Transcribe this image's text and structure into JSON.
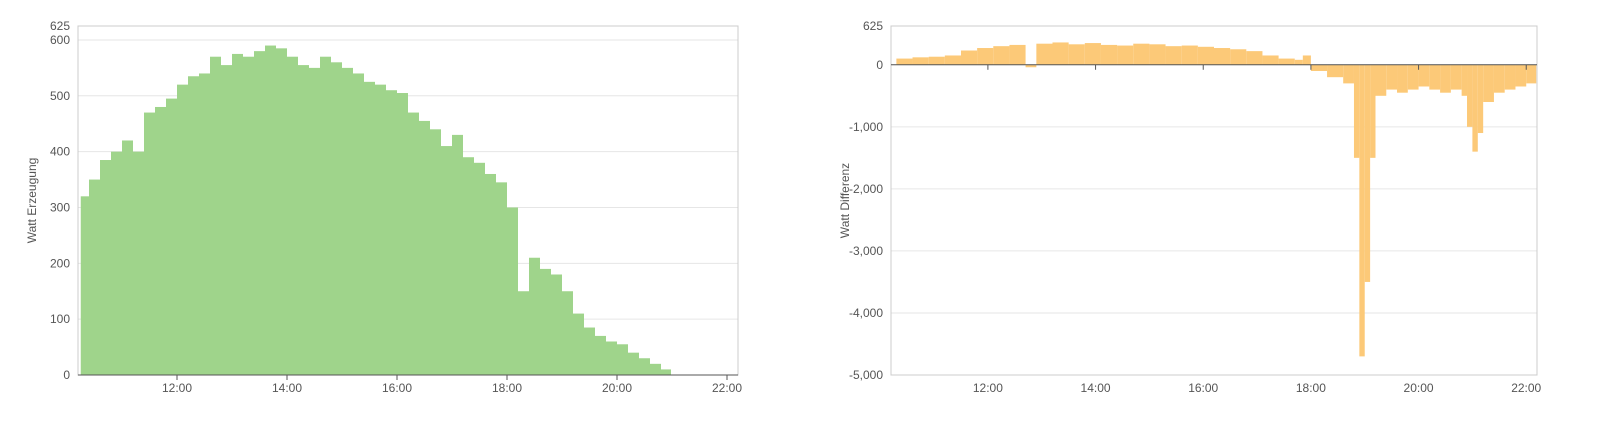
{
  "chart_data": [
    {
      "type": "bar",
      "title": "",
      "xlabel": "",
      "ylabel": "Watt Erzeugung",
      "ylim": [
        0,
        625
      ],
      "yticks": [
        0,
        100,
        200,
        300,
        400,
        500,
        600,
        625
      ],
      "xlim": [
        10.2,
        22.2
      ],
      "xticks": [
        12,
        14,
        16,
        18,
        20,
        22
      ],
      "xtick_labels": [
        "12:00",
        "14:00",
        "16:00",
        "18:00",
        "20:00",
        "22:00"
      ],
      "grid": true,
      "color": "#9fd48b",
      "series": [
        {
          "x": [
            10.25,
            10.4,
            10.6,
            10.8,
            11.0,
            11.2,
            11.4,
            11.6,
            11.8,
            12.0,
            12.2,
            12.4,
            12.6,
            12.8,
            13.0,
            13.2,
            13.4,
            13.6,
            13.8,
            14.0,
            14.2,
            14.4,
            14.6,
            14.8,
            15.0,
            15.2,
            15.4,
            15.6,
            15.8,
            16.0,
            16.2,
            16.4,
            16.6,
            16.8,
            17.0,
            17.2,
            17.4,
            17.6,
            17.8,
            18.0,
            18.2,
            18.4,
            18.6,
            18.8,
            19.0,
            19.2,
            19.4,
            19.6,
            19.8,
            20.0,
            20.2,
            20.4,
            20.6,
            20.8
          ],
          "y": [
            320,
            350,
            385,
            400,
            420,
            400,
            470,
            480,
            495,
            520,
            535,
            540,
            570,
            555,
            575,
            570,
            580,
            590,
            585,
            570,
            555,
            550,
            570,
            560,
            550,
            540,
            525,
            520,
            510,
            505,
            470,
            455,
            440,
            410,
            430,
            390,
            380,
            360,
            345,
            300,
            150,
            210,
            190,
            180,
            150,
            110,
            85,
            70,
            60,
            55,
            40,
            30,
            20,
            10
          ]
        }
      ]
    },
    {
      "type": "bar",
      "title": "",
      "xlabel": "",
      "ylabel": "Watt Differenz",
      "ylim": [
        -5000,
        625
      ],
      "yticks": [
        -5000,
        -4000,
        -3000,
        -2000,
        -1000,
        0,
        625
      ],
      "ytick_labels": [
        "-5,000",
        "-4,000",
        "-3,000",
        "-2,000",
        "-1,000",
        "0",
        "625"
      ],
      "xlim": [
        10.2,
        22.2
      ],
      "xticks": [
        12,
        14,
        16,
        18,
        20,
        22
      ],
      "xtick_labels": [
        "12:00",
        "14:00",
        "16:00",
        "18:00",
        "20:00",
        "22:00"
      ],
      "grid": true,
      "color": "#fcc978",
      "series": [
        {
          "x": [
            10.3,
            10.6,
            10.9,
            11.2,
            11.5,
            11.8,
            12.1,
            12.4,
            12.7,
            12.9,
            13.2,
            13.5,
            13.8,
            14.1,
            14.4,
            14.7,
            15.0,
            15.3,
            15.6,
            15.9,
            16.2,
            16.5,
            16.8,
            17.1,
            17.4,
            17.7,
            17.85,
            18.0,
            18.3,
            18.6,
            18.8,
            18.9,
            19.0,
            19.1,
            19.2,
            19.4,
            19.6,
            19.8,
            20.0,
            20.2,
            20.4,
            20.6,
            20.8,
            20.9,
            21.0,
            21.1,
            21.2,
            21.4,
            21.6,
            21.8,
            22.0
          ],
          "y": [
            100,
            120,
            130,
            150,
            230,
            270,
            300,
            320,
            -40,
            340,
            360,
            330,
            350,
            320,
            310,
            340,
            330,
            300,
            310,
            290,
            270,
            250,
            220,
            150,
            100,
            80,
            150,
            -100,
            -200,
            -300,
            -1500,
            -4700,
            -3500,
            -1500,
            -500,
            -400,
            -450,
            -400,
            -350,
            -400,
            -450,
            -400,
            -500,
            -1000,
            -1400,
            -1100,
            -600,
            -450,
            -400,
            -350,
            -300
          ]
        }
      ]
    }
  ]
}
